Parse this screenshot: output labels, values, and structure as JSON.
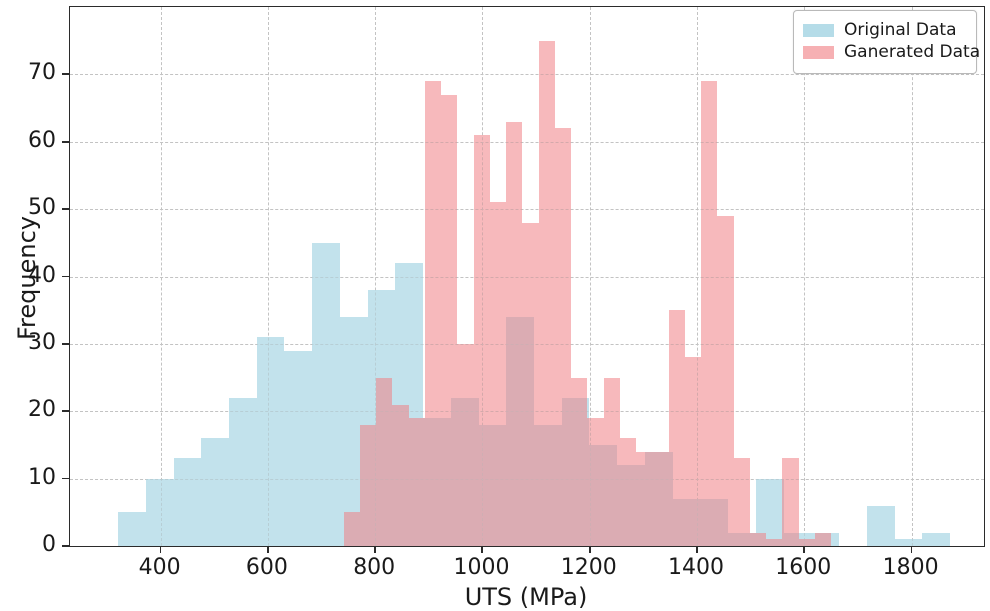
{
  "figure": {
    "x_axis_label": "UTS (MPa)",
    "y_axis_label": "Frequency"
  },
  "legend": {
    "position": "upper right",
    "items": [
      {
        "label": "Original Data",
        "color": "rgba(173,216,230,0.9)"
      },
      {
        "label": "Ganerated Data",
        "color": "rgba(240,128,133,0.62)"
      }
    ]
  },
  "colors": {
    "original_fill": "rgba(173,216,230,0.75)",
    "generated_fill": "rgba(240,128,133,0.55)",
    "grid": "#c3c3c3",
    "spine": "#2b2b2b"
  },
  "chart_data": {
    "type": "histogram",
    "title": "",
    "xlabel": "UTS (MPa)",
    "ylabel": "Frequency",
    "xlim": [
      231,
      1935
    ],
    "ylim": [
      0,
      80
    ],
    "xticks": [
      400,
      600,
      800,
      1000,
      1200,
      1400,
      1600,
      1800
    ],
    "yticks": [
      0,
      10,
      20,
      30,
      40,
      50,
      60,
      70
    ],
    "grid": true,
    "grid_style": "dashed",
    "legend_position": "upper right",
    "series": [
      {
        "name": "Original Data",
        "bin_start": 320.6,
        "bin_width": 51.7,
        "frequencies": [
          5,
          10,
          13,
          16,
          22,
          31,
          29,
          45,
          34,
          38,
          42,
          19,
          22,
          18,
          34,
          18,
          22,
          15,
          12,
          14,
          7,
          7,
          2,
          10,
          2,
          2,
          0,
          6,
          1,
          2
        ]
      },
      {
        "name": "Ganerated Data",
        "bin_start": 741,
        "bin_width": 30.3,
        "frequencies": [
          5,
          18,
          25,
          21,
          19,
          69,
          67,
          30,
          61,
          51,
          63,
          48,
          75,
          62,
          25,
          19,
          25,
          16,
          14,
          14,
          35,
          28,
          69,
          49,
          13,
          2,
          1,
          13,
          1,
          2
        ]
      }
    ]
  }
}
